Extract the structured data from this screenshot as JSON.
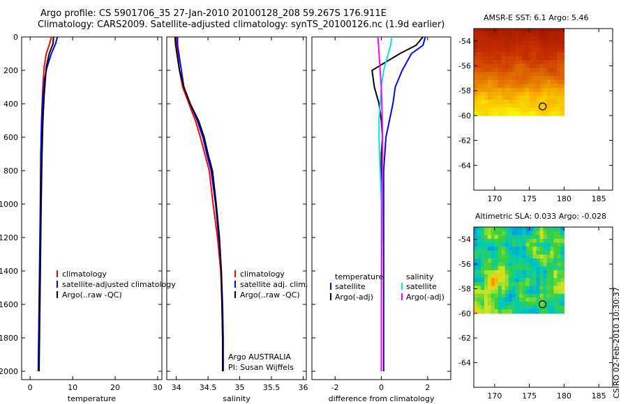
{
  "figure": {
    "title_line1": "Argo profile: CS 5901706_35 27-Jan-2010 20100128_208 59.267S 176.911E",
    "title_line2": "Climatology: CARS2009. Satellite-adjusted climatology: synTS_20100126.nc (1.9d earlier)",
    "stamp": "CSIRO 02-Feb-2010 10:30:37",
    "float_info": [
      "Argo AUSTRALIA",
      "PI: Susan Wijffels"
    ],
    "sst_title": "AMSR-E SST: 6.1  Argo: 5.46",
    "sla_title": "Altimetric SLA: 0.033  Argo: -0.028"
  },
  "colors": {
    "climatology": "#ff0000",
    "satellite": "#0000ff",
    "argo": "#000000",
    "salinity_satellite": "#00e5e5",
    "salinity_argo": "#ff00ff"
  },
  "chart_data": [
    {
      "type": "line",
      "id": "temperature",
      "xlabel": "temperature",
      "ylabel": "",
      "xlim": [
        -2,
        31
      ],
      "ylim": [
        2050,
        0
      ],
      "xticks": [
        0,
        10,
        20,
        30
      ],
      "yticks": [
        0,
        200,
        400,
        600,
        800,
        1000,
        1200,
        1400,
        1600,
        1800,
        2000
      ],
      "legend": [
        "climatology",
        "satellite-adjusted climatology",
        "Argo(..raw -QC)"
      ],
      "series": [
        {
          "name": "climatology",
          "color": "#ff0000",
          "x": [
            5.0,
            4.6,
            3.8,
            3.3,
            3.1,
            2.9,
            2.7,
            2.6,
            2.5,
            2.4,
            2.3,
            2.2,
            2.1,
            2.0
          ],
          "y": [
            0,
            40,
            100,
            180,
            250,
            350,
            500,
            700,
            1000,
            1200,
            1400,
            1600,
            1800,
            2000
          ]
        },
        {
          "name": "satellite-adjusted climatology",
          "color": "#0000ff",
          "x": [
            6.4,
            6.0,
            5.0,
            4.0,
            3.4,
            3.0,
            2.7,
            2.5,
            2.4,
            2.3,
            2.2,
            2.1,
            2.0,
            1.9
          ],
          "y": [
            0,
            40,
            100,
            180,
            250,
            350,
            500,
            700,
            1000,
            1200,
            1400,
            1600,
            1800,
            2000
          ]
        },
        {
          "name": "Argo(..raw -QC)",
          "color": "#000000",
          "x": [
            5.5,
            5.4,
            4.5,
            3.8,
            3.6,
            3.3,
            3.0,
            2.8,
            2.6,
            2.5,
            2.4,
            2.3,
            2.2,
            2.1
          ],
          "y": [
            0,
            40,
            100,
            180,
            250,
            350,
            500,
            700,
            1000,
            1200,
            1400,
            1600,
            1800,
            2000
          ]
        }
      ]
    },
    {
      "type": "line",
      "id": "salinity",
      "xlabel": "salinity",
      "ylabel": "",
      "xlim": [
        33.85,
        36.05
      ],
      "ylim": [
        2050,
        0
      ],
      "xticks": [
        34,
        34.5,
        35,
        35.5,
        36
      ],
      "xticklabels": [
        "34",
        "34.5",
        "35",
        "35.5",
        "36"
      ],
      "legend": [
        "climatology",
        "satellite adj. clim.",
        "Argo(..raw -QC)"
      ],
      "series": [
        {
          "name": "climatology",
          "color": "#ff0000",
          "x": [
            34.0,
            34.0,
            34.02,
            34.05,
            34.1,
            34.2,
            34.3,
            34.38,
            34.45,
            34.52,
            34.58,
            34.65,
            34.7,
            34.72,
            34.73,
            34.74
          ],
          "y": [
            0,
            50,
            100,
            200,
            300,
            400,
            500,
            600,
            700,
            800,
            1000,
            1200,
            1400,
            1600,
            1800,
            2000
          ]
        },
        {
          "name": "satellite adj. clim.",
          "color": "#0000ff",
          "x": [
            34.02,
            34.02,
            34.04,
            34.08,
            34.12,
            34.22,
            34.33,
            34.42,
            34.48,
            34.55,
            34.62,
            34.67,
            34.71,
            34.73,
            34.74,
            34.74
          ],
          "y": [
            0,
            50,
            100,
            200,
            300,
            400,
            500,
            600,
            700,
            800,
            1000,
            1200,
            1400,
            1600,
            1800,
            2000
          ]
        },
        {
          "name": "Argo(..raw -QC)",
          "color": "#000000",
          "x": [
            33.98,
            33.99,
            34.01,
            34.05,
            34.12,
            34.22,
            34.35,
            34.44,
            34.5,
            34.57,
            34.63,
            34.68,
            34.71,
            34.72,
            34.73,
            34.73
          ],
          "y": [
            0,
            50,
            100,
            200,
            300,
            400,
            500,
            600,
            700,
            800,
            1000,
            1200,
            1400,
            1600,
            1800,
            2000
          ]
        }
      ]
    },
    {
      "type": "line",
      "id": "difference",
      "xlabel": "difference from climatology",
      "ylabel": "",
      "xlim": [
        -3,
        3
      ],
      "ylim": [
        2050,
        0
      ],
      "xticks": [
        -2,
        0,
        2
      ],
      "legend": [
        "temperature",
        "satellite",
        "Argo(-adj)",
        "salinity",
        "satellite",
        "Argo(-adj)"
      ],
      "series": [
        {
          "name": "temperature satellite",
          "color": "#0000ff",
          "x": [
            1.9,
            1.8,
            1.3,
            0.9,
            0.6,
            0.5,
            0.35,
            0.2,
            0.15,
            0.1,
            0.1,
            0.1,
            0.1,
            0.1,
            0.1,
            0.1
          ],
          "y": [
            0,
            50,
            100,
            200,
            300,
            400,
            500,
            600,
            700,
            800,
            1000,
            1200,
            1400,
            1600,
            1800,
            2000
          ]
        },
        {
          "name": "temperature Argo(-adj)",
          "color": "#000000",
          "x": [
            1.8,
            1.5,
            0.8,
            -0.4,
            -0.3,
            -0.1,
            0.0,
            0.05,
            0.0,
            0.0,
            0.0,
            0.0,
            0.0,
            0.0,
            0.0,
            0.0
          ],
          "y": [
            0,
            50,
            100,
            200,
            300,
            400,
            500,
            600,
            700,
            800,
            1000,
            1200,
            1400,
            1600,
            1800,
            2000
          ]
        },
        {
          "name": "salinity satellite",
          "color": "#00e5e5",
          "x": [
            0.45,
            0.4,
            0.3,
            0.1,
            0.0,
            -0.05,
            -0.1,
            -0.1,
            -0.08,
            -0.05,
            0.0,
            0.0,
            0.0,
            0.0,
            0.0,
            0.0
          ],
          "y": [
            0,
            50,
            100,
            200,
            300,
            400,
            500,
            600,
            700,
            800,
            1000,
            1200,
            1400,
            1600,
            1800,
            2000
          ]
        },
        {
          "name": "salinity Argo(-adj)",
          "color": "#ff00ff",
          "x": [
            -0.15,
            -0.12,
            -0.1,
            -0.05,
            0.0,
            0.02,
            0.04,
            0.05,
            0.05,
            0.04,
            0.03,
            0.02,
            0.01,
            0.0,
            0.0,
            0.0
          ],
          "y": [
            0,
            50,
            100,
            200,
            300,
            400,
            500,
            600,
            700,
            800,
            1000,
            1200,
            1400,
            1600,
            1800,
            2000
          ]
        }
      ]
    },
    {
      "type": "heatmap",
      "id": "sst-map",
      "title": "AMSR-E SST: 6.1  Argo: 5.46",
      "xlim": [
        167,
        187
      ],
      "ylim": [
        -66,
        -53
      ],
      "xticks": [
        170,
        175,
        180,
        185
      ],
      "yticks": [
        -54,
        -56,
        -58,
        -60,
        -62,
        -64
      ],
      "data_extent": {
        "lon": [
          167,
          180
        ],
        "lat": [
          -60,
          -53
        ]
      },
      "marker": {
        "lon": 176.911,
        "lat": -59.267
      }
    },
    {
      "type": "heatmap",
      "id": "sla-map",
      "title": "Altimetric SLA: 0.033  Argo: -0.028",
      "xlim": [
        167,
        187
      ],
      "ylim": [
        -66,
        -53
      ],
      "xticks": [
        170,
        175,
        180,
        185
      ],
      "yticks": [
        -54,
        -56,
        -58,
        -60,
        -62,
        -64
      ],
      "data_extent": {
        "lon": [
          167,
          180
        ],
        "lat": [
          -60,
          -53
        ]
      },
      "marker": {
        "lon": 176.911,
        "lat": -59.267
      }
    }
  ]
}
